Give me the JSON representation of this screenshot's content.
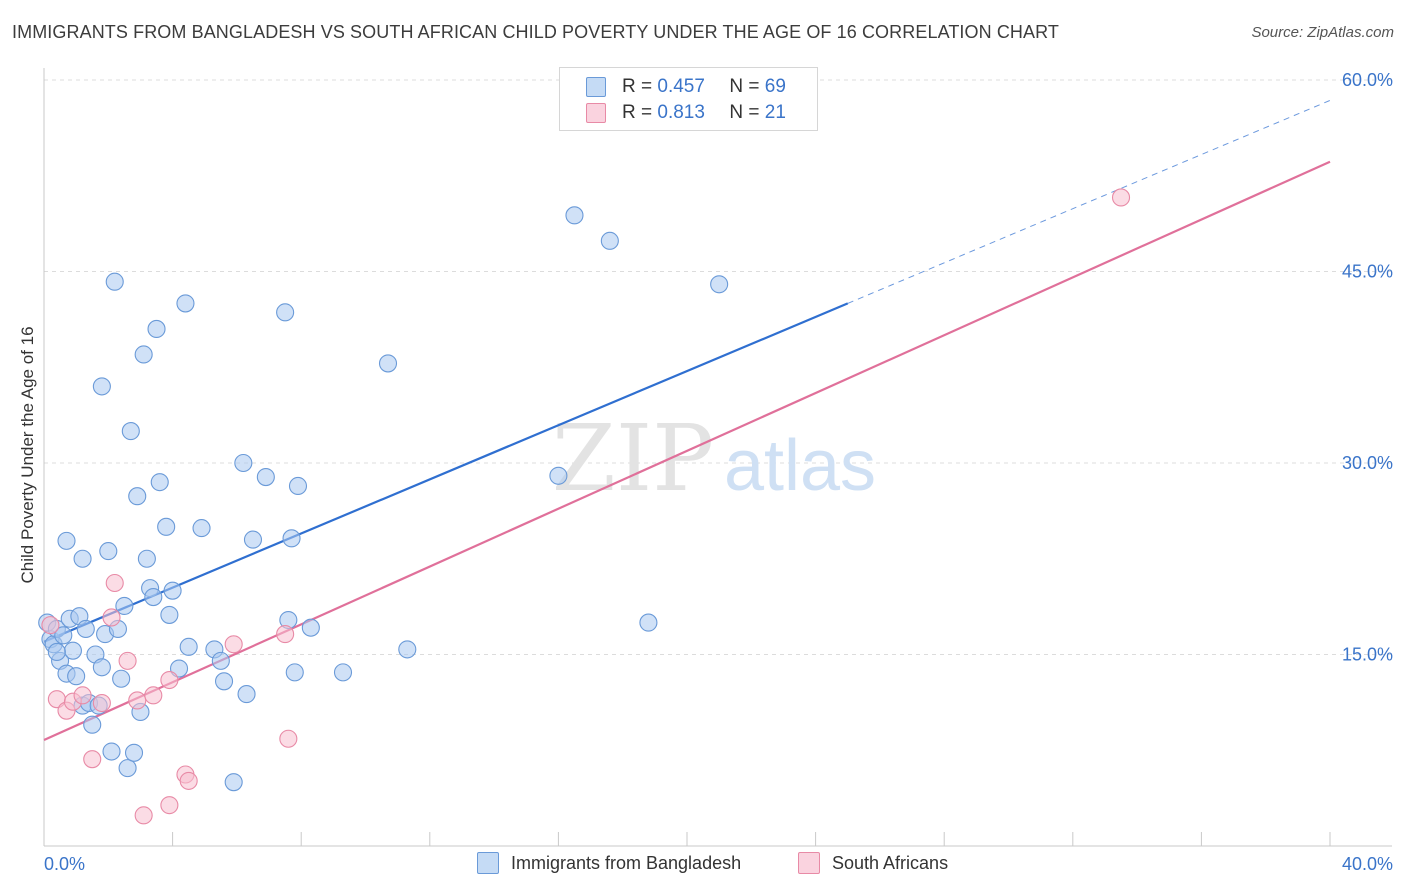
{
  "title": "IMMIGRANTS FROM BANGLADESH VS SOUTH AFRICAN CHILD POVERTY UNDER THE AGE OF 16 CORRELATION CHART",
  "source": "Source: ZipAtlas.com",
  "watermark": {
    "zip": "ZIP",
    "atlas": "atlas"
  },
  "legend": {
    "r_label": "R =",
    "n_label": "N =",
    "rows": [
      {
        "r": "0.457",
        "n": "69",
        "color": "#a9c8f0",
        "stroke": "#6a9ad8"
      },
      {
        "r": "0.813",
        "n": "21",
        "color": "#f7c0d0",
        "stroke": "#e88aa6"
      }
    ]
  },
  "chart_data": {
    "type": "scatter",
    "xlabel": "",
    "ylabel": "Child Poverty Under the Age of 16",
    "xlim": [
      0,
      40
    ],
    "ylim": [
      0,
      60
    ],
    "x_tick_labels": [
      "0.0%",
      "40.0%"
    ],
    "y_ticks": [
      15,
      30,
      45,
      60
    ],
    "y_tick_labels": [
      "15.0%",
      "30.0%",
      "45.0%",
      "60.0%"
    ],
    "grid": true,
    "series": [
      {
        "name": "Immigrants from Bangladesh",
        "color": "#a9c8f0",
        "stroke": "#6a9ad8",
        "line_color": "#2f6fd0",
        "trend": {
          "x0": 0,
          "y0": 16.0,
          "x1": 25.0,
          "y1": 42.5,
          "extend_to": 40,
          "extend_y": 58.4
        },
        "points": [
          [
            0.1,
            17.5
          ],
          [
            0.2,
            16.2
          ],
          [
            0.3,
            15.8
          ],
          [
            0.4,
            17.0
          ],
          [
            0.5,
            14.5
          ],
          [
            0.6,
            16.5
          ],
          [
            0.7,
            13.5
          ],
          [
            0.8,
            17.8
          ],
          [
            0.9,
            15.3
          ],
          [
            1.0,
            13.3
          ],
          [
            1.1,
            18.0
          ],
          [
            1.2,
            11.0
          ],
          [
            1.2,
            22.5
          ],
          [
            1.3,
            17.0
          ],
          [
            1.4,
            11.2
          ],
          [
            1.5,
            9.5
          ],
          [
            1.6,
            15.0
          ],
          [
            1.7,
            11.0
          ],
          [
            1.8,
            14.0
          ],
          [
            1.9,
            16.6
          ],
          [
            2.0,
            23.1
          ],
          [
            2.1,
            7.4
          ],
          [
            2.3,
            17.0
          ],
          [
            2.4,
            13.1
          ],
          [
            2.5,
            18.8
          ],
          [
            2.6,
            6.1
          ],
          [
            2.8,
            7.3
          ],
          [
            2.9,
            27.4
          ],
          [
            3.0,
            10.5
          ],
          [
            3.2,
            22.5
          ],
          [
            3.3,
            20.2
          ],
          [
            3.4,
            19.5
          ],
          [
            3.5,
            40.5
          ],
          [
            3.6,
            28.5
          ],
          [
            3.8,
            25.0
          ],
          [
            3.9,
            18.1
          ],
          [
            4.0,
            20.0
          ],
          [
            4.2,
            13.9
          ],
          [
            4.4,
            42.5
          ],
          [
            4.5,
            15.6
          ],
          [
            4.9,
            24.9
          ],
          [
            5.3,
            15.4
          ],
          [
            5.5,
            14.5
          ],
          [
            5.6,
            12.9
          ],
          [
            5.9,
            5.0
          ],
          [
            6.2,
            30.0
          ],
          [
            6.3,
            11.9
          ],
          [
            6.5,
            24.0
          ],
          [
            6.9,
            28.9
          ],
          [
            7.5,
            41.8
          ],
          [
            7.6,
            17.7
          ],
          [
            7.7,
            24.1
          ],
          [
            7.8,
            13.6
          ],
          [
            7.9,
            28.2
          ],
          [
            8.3,
            17.1
          ],
          [
            9.3,
            13.6
          ],
          [
            10.7,
            37.8
          ],
          [
            11.3,
            15.4
          ],
          [
            16.0,
            29.0
          ],
          [
            16.5,
            49.4
          ],
          [
            17.6,
            47.4
          ],
          [
            18.8,
            17.5
          ],
          [
            21.0,
            44.0
          ],
          [
            2.2,
            44.2
          ],
          [
            1.8,
            36.0
          ],
          [
            2.7,
            32.5
          ],
          [
            3.1,
            38.5
          ],
          [
            0.7,
            23.9
          ],
          [
            0.4,
            15.2
          ]
        ]
      },
      {
        "name": "South Africans",
        "color": "#f7c0d0",
        "stroke": "#e88aa6",
        "line_color": "#e0709a",
        "trend": {
          "x0": 0,
          "y0": 8.3,
          "x1": 40,
          "y1": 53.6
        },
        "points": [
          [
            0.2,
            17.3
          ],
          [
            0.4,
            11.5
          ],
          [
            0.7,
            10.6
          ],
          [
            0.9,
            11.3
          ],
          [
            1.2,
            11.8
          ],
          [
            1.5,
            6.8
          ],
          [
            1.8,
            11.2
          ],
          [
            2.1,
            17.9
          ],
          [
            2.2,
            20.6
          ],
          [
            2.6,
            14.5
          ],
          [
            2.9,
            11.4
          ],
          [
            3.1,
            2.4
          ],
          [
            3.4,
            11.8
          ],
          [
            3.9,
            13.0
          ],
          [
            3.9,
            3.2
          ],
          [
            4.4,
            5.6
          ],
          [
            4.5,
            5.1
          ],
          [
            5.9,
            15.8
          ],
          [
            7.5,
            16.6
          ],
          [
            7.6,
            8.4
          ],
          [
            33.5,
            50.8
          ]
        ]
      }
    ]
  },
  "bottom_legend": [
    "Immigrants from Bangladesh",
    "South Africans"
  ]
}
